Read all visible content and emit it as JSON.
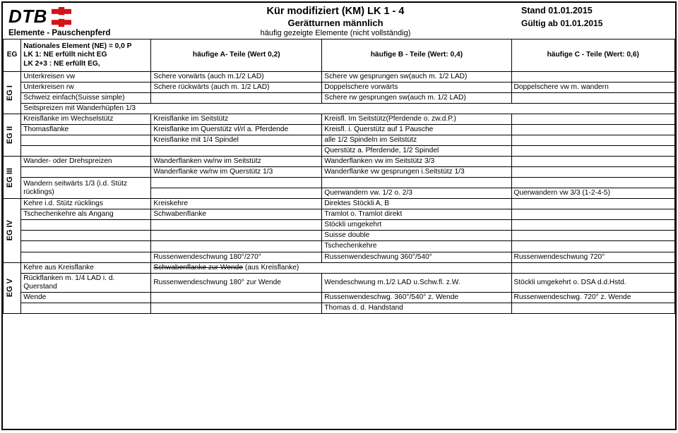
{
  "header": {
    "logo_text": "DTB",
    "elements_line": "Elemente  -  Pauschenpferd",
    "title1": "Kür modifiziert (KM)   LK 1 - 4",
    "title2": "Gerätturnen männlich",
    "subtitle": "häufig gezeigte Elemente (nicht vollständig)",
    "stand": "Stand 01.01.2015",
    "gueltig": "Gültig ab 01.01.2015"
  },
  "colhdr": {
    "eg": "EG",
    "left": "Nationales Element (NE) = 0,0 P\nLK 1:     NE erfüllt nicht EG\nLK 2+3 : NE erfüllt EG,",
    "a": "häufige  A- Teile  (Wert 0,2)",
    "b": "häufige  B - Teile (Wert: 0,4)",
    "c": "häufige C - Teile (Wert: 0,6)"
  },
  "groups": [
    {
      "label": "EG I",
      "rows": [
        [
          "Unterkreisen vw",
          "Schere vorwärts (auch m.1/2 LAD)",
          "Schere vw gesprungen sw(auch m. 1/2 LAD)",
          ""
        ],
        [
          "Unterkreisen rw",
          "Schere rückwärts (auch m. 1/2 LAD)",
          "Doppelschere vorwärts",
          "Doppelschere vw m. wandern"
        ],
        [
          "Schweiz einfach(Suisse simple)",
          "",
          "Schere rw gesprungen sw(auch m. 1/2 LAD)",
          ""
        ],
        [
          "Seitspreizen mit Wanderhüpfen 1/3",
          "",
          "",
          ""
        ]
      ]
    },
    {
      "label": "EG II",
      "rows": [
        [
          "Kreisflanke im Wechselstütz",
          "Kreisflanke im Seitstütz",
          "Kreisfl. Im Seitstütz(Pferdende o. zw.d.P.)",
          ""
        ],
        [
          "   Thomasflanke",
          "Kreisflanke im Querstütz vl/rl a. Pferdende",
          "Kreisfl. i. Querstütz auf 1 Pausche",
          ""
        ],
        [
          "",
          "Kreisflanke mit 1/4 Spindel",
          "alle 1/2 Spindeln im Seitstütz",
          ""
        ],
        [
          "",
          "",
          "Querstütz a. Pferdende, 1/2 Spindel",
          ""
        ]
      ]
    },
    {
      "label": "EG III",
      "rows": [
        [
          "Wander- oder Drehspreizen",
          "Wanderflanken vw/rw im Seitstütz",
          "Wanderflanken vw im Seitstütz 3/3",
          ""
        ],
        [
          "",
          "Wanderflanke vw/rw im Querstütz 1/3",
          "Wanderflanke vw gesprungen i.Seitstütz 1/3",
          ""
        ],
        [
          "Wandern seitwärts 1/3 (i.d. Stütz rücklings)",
          "",
          "",
          ""
        ],
        [
          "",
          "",
          "Querwandern vw. 1/2 o. 2/3",
          "Querwandern vw 3/3 (1-2-4-5)"
        ]
      ]
    },
    {
      "label": "EG IV",
      "rows": [
        [
          "Kehre i.d. Stütz rücklings",
          "Kreiskehre",
          "Direktes Stöckli A, B",
          ""
        ],
        [
          "Tschechenkehre als Angang",
          "Schwabenflanke",
          "Tramlot o. Tramlot direkt",
          ""
        ],
        [
          "",
          "",
          "Stöckli umgekehrt",
          ""
        ],
        [
          "",
          "",
          "Suisse double",
          ""
        ],
        [
          "",
          "",
          " Tschechenkehre",
          ""
        ],
        [
          "",
          "Russenwendeschwung 180°/270°",
          "Russenwendeschwung 360°/540°",
          "Russenwendeschwung 720°"
        ]
      ]
    },
    {
      "label": "EG V",
      "rows": [
        [
          "Kehre aus Kreisflanke",
          "Schwabenflanke zur Wende",
          " (aus Kreisflanke)",
          ""
        ],
        [
          "Rückflanken m. 1/4 LAD i. d. Querstand",
          "Russenwendeschwung 180° zur Wende",
          "Wendeschwung m.1/2 LAD u.Schw.fl. z.W.",
          "Stöckli umgekehrt o. DSA d.d.Hstd."
        ],
        [
          "Wende",
          "",
          "Russenwendeschwg. 360°/540° z. Wende",
          "Russenwendeschwg. 720° z. Wende"
        ],
        [
          "",
          "",
          "Thomas d. d. Handstand",
          ""
        ]
      ]
    }
  ]
}
